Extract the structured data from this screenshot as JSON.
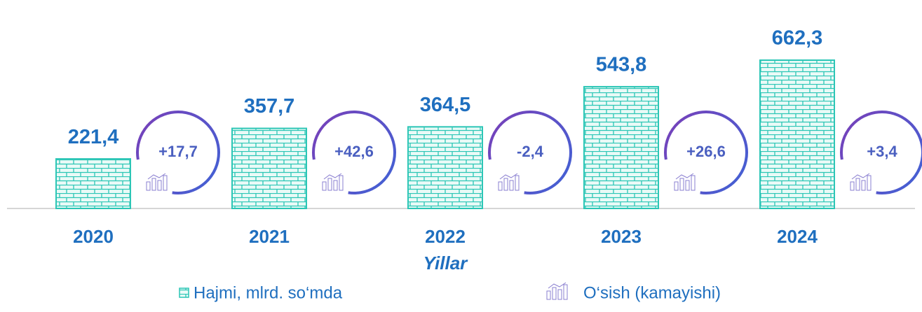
{
  "chart_data": {
    "type": "bar",
    "categories": [
      "2020",
      "2021",
      "2022",
      "2023",
      "2024"
    ],
    "x_label": "Yillar",
    "series": [
      {
        "name": "Hajmi, mlrd. so‘mda",
        "color": "#2cc6b6",
        "values": [
          221.4,
          357.7,
          364.5,
          543.8,
          662.3
        ],
        "value_labels": [
          "221,4",
          "357,7",
          "364,5",
          "543,8",
          "662,3"
        ]
      },
      {
        "name": "O‘sish (kamayishi)",
        "color": "#5a4fcf",
        "values": [
          17.7,
          42.6,
          -2.4,
          26.6,
          3.4
        ],
        "value_labels": [
          "+17,7",
          "+42,6",
          "-2,4",
          "+26,6",
          "+3,4"
        ]
      }
    ]
  }
}
